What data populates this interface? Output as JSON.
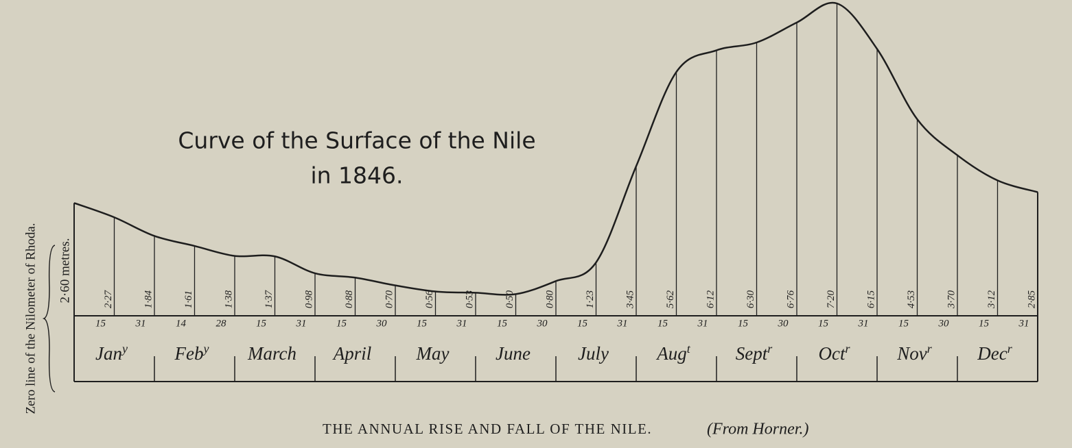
{
  "chart_data": {
    "type": "line",
    "title_lines": [
      "Curve of the Surface of the Nile",
      "in 1846."
    ],
    "y_label": "Zero line of the Nilometer of Rhoda.",
    "caption": "THE ANNUAL RISE AND FALL OF THE NILE.",
    "source": "(From Horner.)",
    "categories": [
      null,
      "15",
      "31",
      "14",
      "28",
      "15",
      "31",
      "15",
      "30",
      "15",
      "31",
      "15",
      "30",
      "15",
      "31",
      "15",
      "31",
      "15",
      "30",
      "15",
      "31",
      "15",
      "30",
      "15",
      "31"
    ],
    "months": [
      {
        "text": "Jan",
        "sup": "y"
      },
      {
        "text": "Feb",
        "sup": "y"
      },
      {
        "text": "March"
      },
      {
        "text": "April"
      },
      {
        "text": "May"
      },
      {
        "text": "June"
      },
      {
        "text": "July"
      },
      {
        "text": "Aug",
        "sup": "t"
      },
      {
        "text": "Sept",
        "sup": "r"
      },
      {
        "text": "Oct",
        "sup": "r"
      },
      {
        "text": "Nov",
        "sup": "r"
      },
      {
        "text": "Dec",
        "sup": "r"
      }
    ],
    "values": [
      2.6,
      2.27,
      1.84,
      1.61,
      1.38,
      1.37,
      0.98,
      0.88,
      0.7,
      0.56,
      0.53,
      0.5,
      0.8,
      1.23,
      3.45,
      5.62,
      6.12,
      6.3,
      6.76,
      7.2,
      6.15,
      4.53,
      3.7,
      3.12,
      2.85
    ],
    "value_labels": [
      "2·60 metres.",
      "2·27",
      "1·84",
      "1·61",
      "1·38",
      "1·37",
      "0·98",
      "0·88",
      "0·70",
      "0·56",
      "0·53",
      "0·50",
      "0·80",
      "1·23",
      "3·45",
      "5·62",
      "6·12",
      "6·30",
      "6·76",
      "7·20",
      "6·15",
      "4·53",
      "3·70",
      "3·12",
      "2·85"
    ],
    "color": "#1e1e1e",
    "ylim": [
      0,
      7.2
    ]
  }
}
